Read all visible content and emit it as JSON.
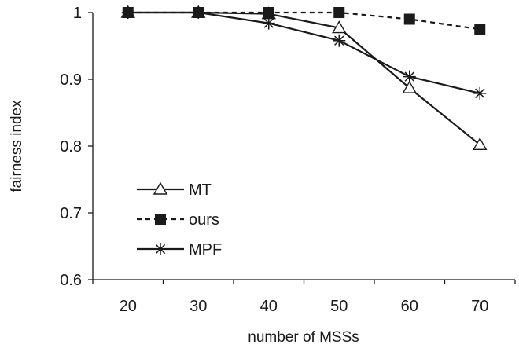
{
  "chart_data": {
    "type": "line",
    "xlabel": "number of MSSs",
    "ylabel": "fairness index",
    "categories": [
      "20",
      "30",
      "40",
      "50",
      "60",
      "70"
    ],
    "ylim": [
      0.6,
      1.0
    ],
    "yticks": [
      "0.6",
      "0.7",
      "0.8",
      "0.9",
      "1"
    ],
    "grid": false,
    "legend_position": "bottom-left",
    "series": [
      {
        "name": "MT",
        "values": [
          1.0,
          1.0,
          0.998,
          0.977,
          0.887,
          0.802
        ],
        "marker": "open-triangle",
        "line": "solid",
        "color": "#1a1a1a"
      },
      {
        "name": "ours",
        "values": [
          1.0,
          1.0,
          1.0,
          1.0,
          0.99,
          0.975
        ],
        "marker": "filled-square",
        "line": "dashed",
        "color": "#1a1a1a"
      },
      {
        "name": "MPF",
        "values": [
          1.0,
          1.0,
          0.984,
          0.958,
          0.904,
          0.879
        ],
        "marker": "asterisk",
        "line": "solid",
        "color": "#1a1a1a"
      }
    ]
  }
}
